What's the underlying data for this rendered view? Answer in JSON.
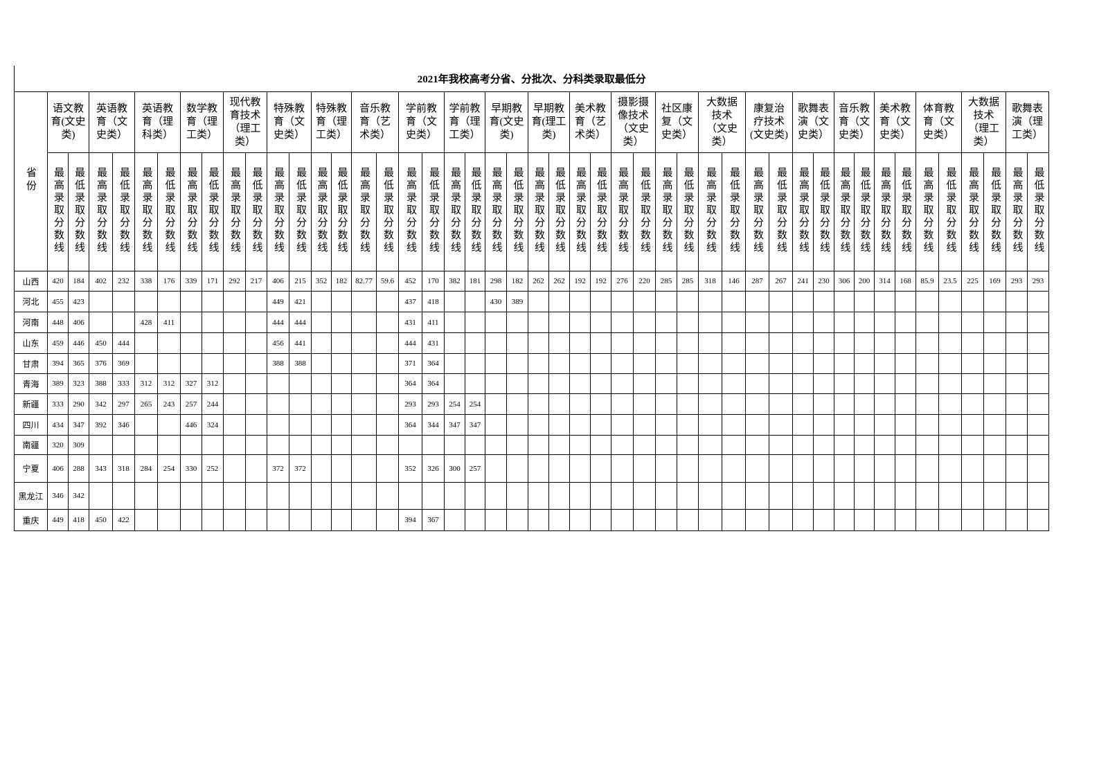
{
  "title": "2021年我校高考分省、分批次、分科类录取最低分",
  "province_header": "省份",
  "majors": [
    "语文教育(文史类)",
    "英语教育（文史类）",
    "英语教育（理科类）",
    "数学教育（理工类）",
    "现代教育技术（理工类）",
    "特殊教育（文史类）",
    "特殊教育（理工类）",
    "音乐教育（艺术类）",
    "学前教育（文史类）",
    "学前教育（理工类）",
    "早期教育(文史类)",
    "早期教育(理工类)",
    "美术教育（艺术类）",
    "摄影摄像技术（文史类）",
    "社区康复（文史类）",
    "大数据技术（文史类）",
    "康复治疗技术(文史类)",
    "歌舞表演（文史类）",
    "音乐教育（文史类）",
    "美术教育（文史类）",
    "体育教育（文史类）",
    "大数据技术（理工类）",
    "歌舞表演（理工类）"
  ],
  "subheaders": [
    "最高录取分数线",
    "最低录取分数线"
  ],
  "rows": [
    {
      "province": "山西",
      "scores": [
        420,
        184,
        402,
        232,
        338,
        176,
        339,
        171,
        292,
        217,
        406,
        215,
        352,
        182,
        82.77,
        59.6,
        452,
        170,
        382,
        181,
        298,
        182,
        262,
        262,
        192,
        192,
        276,
        220,
        285,
        285,
        318,
        146,
        287,
        267,
        241,
        230,
        306,
        200,
        314,
        168,
        85.9,
        23.5,
        225,
        169,
        293,
        293
      ]
    },
    {
      "province": "河北",
      "scores": [
        455,
        423,
        null,
        null,
        null,
        null,
        null,
        null,
        null,
        null,
        449,
        421,
        null,
        null,
        null,
        null,
        437,
        418,
        null,
        null,
        430,
        389,
        null,
        null,
        null,
        null,
        null,
        null,
        null,
        null,
        null,
        null,
        null,
        null,
        null,
        null,
        null,
        null,
        null,
        null,
        null,
        null,
        null,
        null,
        null,
        null
      ]
    },
    {
      "province": "河南",
      "scores": [
        448,
        406,
        null,
        null,
        428,
        411,
        null,
        null,
        null,
        null,
        444,
        444,
        null,
        null,
        null,
        null,
        431,
        411,
        null,
        null,
        null,
        null,
        null,
        null,
        null,
        null,
        null,
        null,
        null,
        null,
        null,
        null,
        null,
        null,
        null,
        null,
        null,
        null,
        null,
        null,
        null,
        null,
        null,
        null,
        null,
        null
      ]
    },
    {
      "province": "山东",
      "scores": [
        459,
        446,
        450,
        444,
        null,
        null,
        null,
        null,
        null,
        null,
        456,
        441,
        null,
        null,
        null,
        null,
        444,
        431,
        null,
        null,
        null,
        null,
        null,
        null,
        null,
        null,
        null,
        null,
        null,
        null,
        null,
        null,
        null,
        null,
        null,
        null,
        null,
        null,
        null,
        null,
        null,
        null,
        null,
        null,
        null,
        null
      ]
    },
    {
      "province": "甘肃",
      "scores": [
        394,
        365,
        376,
        369,
        null,
        null,
        null,
        null,
        null,
        null,
        388,
        388,
        null,
        null,
        null,
        null,
        371,
        364,
        null,
        null,
        null,
        null,
        null,
        null,
        null,
        null,
        null,
        null,
        null,
        null,
        null,
        null,
        null,
        null,
        null,
        null,
        null,
        null,
        null,
        null,
        null,
        null,
        null,
        null,
        null,
        null
      ]
    },
    {
      "province": "青海",
      "scores": [
        389,
        323,
        388,
        333,
        312,
        312,
        327,
        312,
        null,
        null,
        null,
        null,
        null,
        null,
        null,
        null,
        364,
        364,
        null,
        null,
        null,
        null,
        null,
        null,
        null,
        null,
        null,
        null,
        null,
        null,
        null,
        null,
        null,
        null,
        null,
        null,
        null,
        null,
        null,
        null,
        null,
        null,
        null,
        null,
        null,
        null
      ]
    },
    {
      "province": "新疆",
      "scores": [
        333,
        290,
        342,
        297,
        265,
        243,
        257,
        244,
        null,
        null,
        null,
        null,
        null,
        null,
        null,
        null,
        293,
        293,
        254,
        254,
        null,
        null,
        null,
        null,
        null,
        null,
        null,
        null,
        null,
        null,
        null,
        null,
        null,
        null,
        null,
        null,
        null,
        null,
        null,
        null,
        null,
        null,
        null,
        null,
        null,
        null
      ]
    },
    {
      "province": "四川",
      "scores": [
        434,
        347,
        392,
        346,
        null,
        null,
        446,
        324,
        null,
        null,
        null,
        null,
        null,
        null,
        null,
        null,
        364,
        344,
        347,
        347,
        null,
        null,
        null,
        null,
        null,
        null,
        null,
        null,
        null,
        null,
        null,
        null,
        null,
        null,
        null,
        null,
        null,
        null,
        null,
        null,
        null,
        null,
        null,
        null,
        null,
        null
      ]
    },
    {
      "province": "南疆",
      "scores": [
        320,
        309,
        null,
        null,
        null,
        null,
        null,
        null,
        null,
        null,
        null,
        null,
        null,
        null,
        null,
        null,
        null,
        null,
        null,
        null,
        null,
        null,
        null,
        null,
        null,
        null,
        null,
        null,
        null,
        null,
        null,
        null,
        null,
        null,
        null,
        null,
        null,
        null,
        null,
        null,
        null,
        null,
        null,
        null,
        null,
        null
      ]
    },
    {
      "province": "宁夏",
      "scores": [
        406,
        288,
        343,
        318,
        284,
        254,
        330,
        252,
        null,
        null,
        372,
        372,
        null,
        null,
        null,
        null,
        352,
        326,
        300,
        257,
        null,
        null,
        null,
        null,
        null,
        null,
        null,
        null,
        null,
        null,
        null,
        null,
        null,
        null,
        null,
        null,
        null,
        null,
        null,
        null,
        null,
        null,
        null,
        null,
        null,
        null
      ]
    },
    {
      "province": "黑龙江",
      "scores": [
        346,
        342,
        null,
        null,
        null,
        null,
        null,
        null,
        null,
        null,
        null,
        null,
        null,
        null,
        null,
        null,
        null,
        null,
        null,
        null,
        null,
        null,
        null,
        null,
        null,
        null,
        null,
        null,
        null,
        null,
        null,
        null,
        null,
        null,
        null,
        null,
        null,
        null,
        null,
        null,
        null,
        null,
        null,
        null,
        null,
        null
      ]
    },
    {
      "province": "重庆",
      "scores": [
        449,
        418,
        450,
        422,
        null,
        null,
        null,
        null,
        null,
        null,
        null,
        null,
        null,
        null,
        null,
        null,
        394,
        367,
        null,
        null,
        null,
        null,
        null,
        null,
        null,
        null,
        null,
        null,
        null,
        null,
        null,
        null,
        null,
        null,
        null,
        null,
        null,
        null,
        null,
        null,
        null,
        null,
        null,
        null,
        null,
        null
      ]
    }
  ]
}
